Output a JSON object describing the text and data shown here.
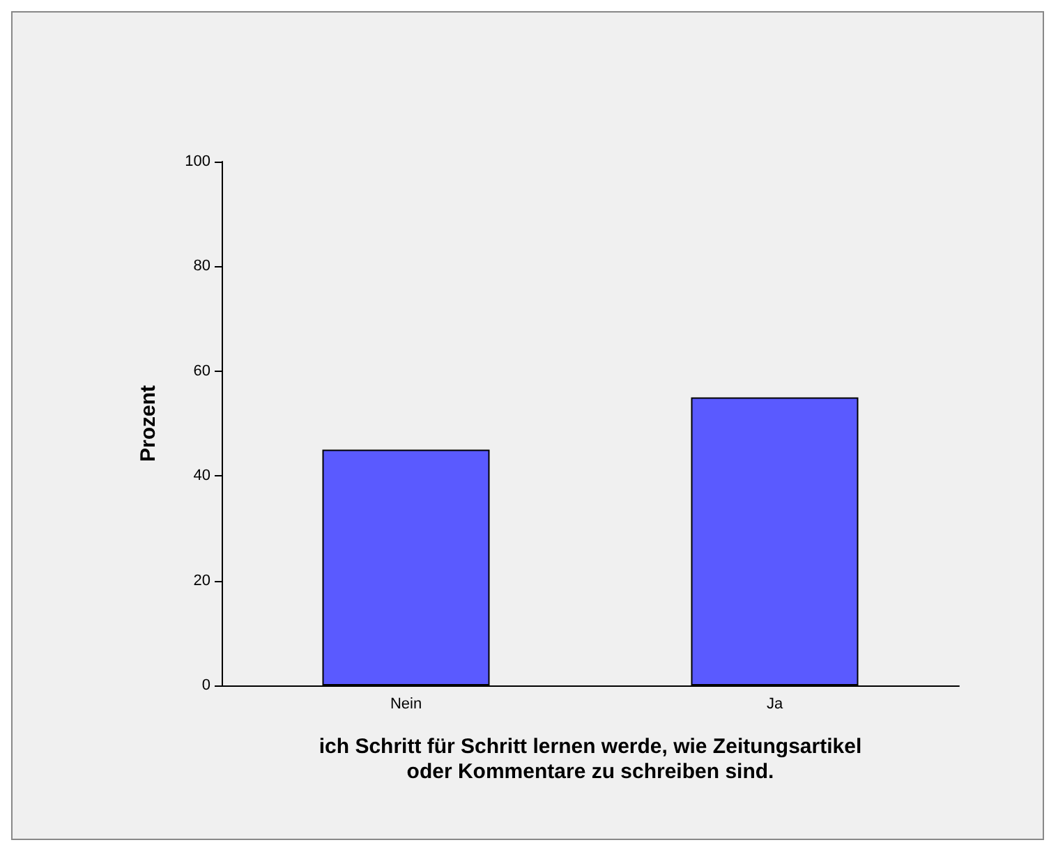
{
  "chart_data": {
    "type": "bar",
    "categories": [
      "Nein",
      "Ja"
    ],
    "values": [
      45,
      55
    ],
    "color": "#5a5aff",
    "xlabel": "ich Schritt für Schritt lernen werde, wie Zeitungsartikel\noder Kommentare zu schreiben sind.",
    "ylabel": "Prozent",
    "ylim": [
      0,
      100
    ],
    "yticks": [
      0,
      20,
      40,
      60,
      80,
      100
    ],
    "grid": false
  }
}
